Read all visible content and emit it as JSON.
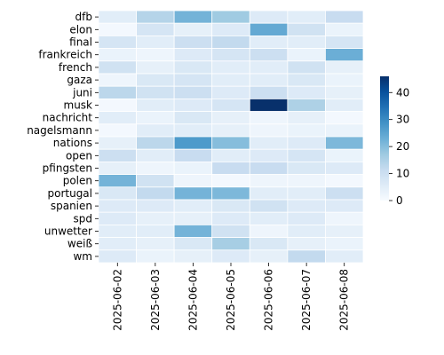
{
  "chart_data": {
    "type": "heatmap",
    "title": "",
    "xlabel": "",
    "ylabel": "",
    "x": [
      "2025-06-02",
      "2025-06-03",
      "2025-06-04",
      "2025-06-05",
      "2025-06-06",
      "2025-06-07",
      "2025-06-08"
    ],
    "y": [
      "dfb",
      "elon",
      "final",
      "frankreich",
      "french",
      "gaza",
      "juni",
      "musk",
      "nachricht",
      "nagelsmann",
      "nations",
      "open",
      "pfingsten",
      "polen",
      "portugal",
      "spanien",
      "spd",
      "unwetter",
      "weiß",
      "wm"
    ],
    "values": [
      [
        5,
        14,
        22,
        17,
        6,
        5,
        11
      ],
      [
        1,
        8,
        4,
        6,
        24,
        9,
        3
      ],
      [
        8,
        5,
        10,
        12,
        5,
        5,
        8
      ],
      [
        3,
        2,
        6,
        8,
        10,
        3,
        23
      ],
      [
        9,
        4,
        7,
        5,
        5,
        9,
        4
      ],
      [
        2,
        7,
        8,
        5,
        5,
        7,
        3
      ],
      [
        13,
        9,
        10,
        6,
        10,
        6,
        4
      ],
      [
        1,
        5,
        6,
        8,
        46,
        15,
        5
      ],
      [
        5,
        3,
        7,
        4,
        2,
        4,
        1
      ],
      [
        1,
        5,
        5,
        4,
        2,
        3,
        3
      ],
      [
        4,
        13,
        27,
        20,
        5,
        6,
        21
      ],
      [
        10,
        5,
        11,
        5,
        6,
        8,
        3
      ],
      [
        4,
        2,
        3,
        11,
        11,
        7,
        6
      ],
      [
        22,
        9,
        2,
        1,
        2,
        2,
        1
      ],
      [
        7,
        12,
        22,
        21,
        5,
        5,
        10
      ],
      [
        6,
        6,
        5,
        7,
        9,
        6,
        6
      ],
      [
        6,
        4,
        4,
        6,
        5,
        6,
        2
      ],
      [
        5,
        5,
        22,
        9,
        2,
        5,
        4
      ],
      [
        5,
        4,
        7,
        16,
        7,
        4,
        3
      ],
      [
        6,
        3,
        4,
        6,
        4,
        12,
        5
      ]
    ],
    "colorbar": {
      "min": 0,
      "max": 46,
      "ticks": [
        0,
        10,
        20,
        30,
        40
      ]
    },
    "colormap": [
      "#f7fbff",
      "#deebf7",
      "#c6dbef",
      "#9ecae1",
      "#6baed6",
      "#4292c6",
      "#2171b5",
      "#08519c",
      "#08306b"
    ],
    "grid_line_color": "#ffffff"
  }
}
